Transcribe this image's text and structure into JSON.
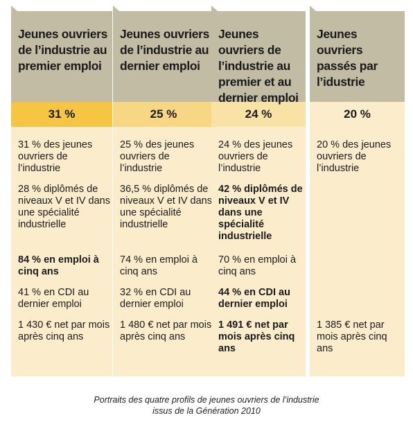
{
  "columns": [
    {
      "header": "Jeunes ouvriers de l’industrie au premier emploi",
      "percent": "31 %",
      "items": [
        {
          "text": "31 % des jeunes ouvriers de l’industrie",
          "bold": false
        },
        {
          "text": "28 % diplômés de niveaux V et IV dans une spécialité industrielle",
          "bold": false
        },
        {
          "text": "84 % en emploi à cinq ans",
          "bold": true
        },
        {
          "text": "41 % en CDI au dernier emploi",
          "bold": false
        },
        {
          "text": "1 430 € net par mois après cinq ans",
          "bold": false
        }
      ]
    },
    {
      "header": "Jeunes ouvriers de l’industrie au dernier emploi",
      "percent": "25 %",
      "items": [
        {
          "text": "25 % des jeunes ouvriers de l’industrie",
          "bold": false
        },
        {
          "text": "36,5 % diplômés de niveaux V et IV dans une spécialité industrielle",
          "bold": false
        },
        {
          "text": "74 % en emploi à cinq ans",
          "bold": false
        },
        {
          "text": "32 % en CDI au dernier emploi",
          "bold": false
        },
        {
          "text": "1 480 € net par mois après cinq ans",
          "bold": false
        }
      ]
    },
    {
      "header": "Jeunes ouvriers de l’industrie au premier et au dernier emploi",
      "percent": "24 %",
      "items": [
        {
          "text": "24 % des jeunes ouvriers de l’industrie",
          "bold": false
        },
        {
          "text": "42 % diplômés de niveaux V et IV dans une spécialité industrielle",
          "bold": true
        },
        {
          "text": "70 % en emploi à cinq ans",
          "bold": false
        },
        {
          "text": "44 % en CDI au dernier emploi",
          "bold": true
        },
        {
          "text": "1 491 € net par mois après cinq ans",
          "bold": true
        }
      ]
    },
    {
      "header": "Jeunes ouvriers passés par l’idustrie",
      "percent": "20 %",
      "items": [
        {
          "text": "20 % des jeunes ouvriers de l’industrie",
          "bold": false
        },
        {
          "text": "1 385 € net par mois après cinq ans",
          "bold": false
        }
      ]
    }
  ],
  "caption": {
    "line1": "Portraits des quatre profils de jeunes ouvriers de l’industrie",
    "line2": "issus de la Génération 2010"
  }
}
